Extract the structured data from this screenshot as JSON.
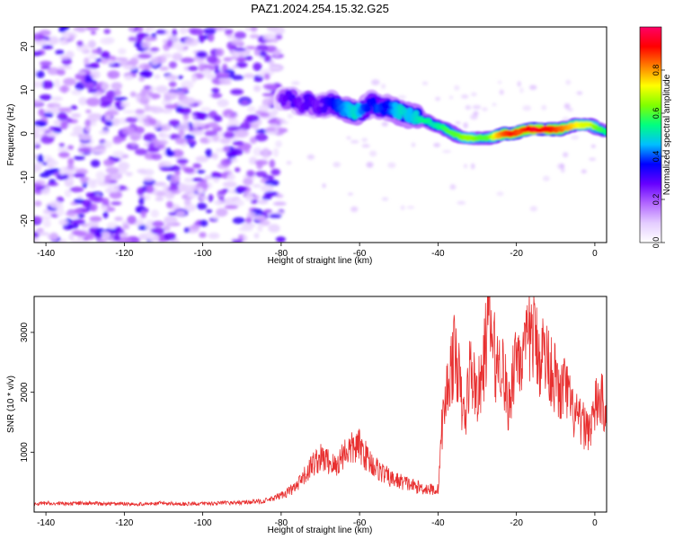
{
  "title": "PAZ1.2024.254.15.32.G25",
  "chart_data": [
    {
      "type": "heatmap",
      "xlabel": "Height of straight line (km)",
      "ylabel": "Frequency (Hz)",
      "xlim": [
        -143,
        3
      ],
      "ylim": [
        -25,
        24.5
      ],
      "xticks": [
        -140,
        -120,
        -100,
        -80,
        -60,
        -40,
        -20,
        0
      ],
      "yticks": [
        -20,
        -10,
        0,
        10,
        20
      ],
      "colorbar": {
        "label": "Normalized spectral amplitude",
        "range": [
          0,
          1
        ],
        "ticks": [
          0.0,
          0.2,
          0.4,
          0.6,
          0.8
        ],
        "colormap": [
          "#ffffff",
          "#e4ccff",
          "#b266ff",
          "#6600ff",
          "#0000ff",
          "#00bfff",
          "#00ff80",
          "#80ff00",
          "#ffff00",
          "#ff8000",
          "#ff0000",
          "#ff0066"
        ]
      },
      "ridge": {
        "x": [
          -80,
          -77,
          -75,
          -73,
          -71,
          -69,
          -67,
          -65,
          -63,
          -61,
          -59,
          -57,
          -55,
          -53,
          -51,
          -49,
          -47,
          -45,
          -43,
          -41,
          -39,
          -37,
          -35,
          -33,
          -31,
          -29,
          -27,
          -25,
          -23,
          -21,
          -19,
          -17,
          -15,
          -13,
          -11,
          -9,
          -7,
          -5,
          -3,
          -1,
          1,
          3
        ],
        "y": [
          8,
          8,
          6.5,
          7.5,
          6,
          6.5,
          7,
          6,
          5.5,
          5,
          5.5,
          7,
          6,
          6,
          5.5,
          4.5,
          4,
          3.5,
          3,
          2,
          1.5,
          0.5,
          -0.5,
          -1,
          -1,
          -1,
          -1,
          -0.5,
          0,
          0,
          0.5,
          1,
          1,
          1,
          1,
          1,
          1.5,
          2,
          2,
          2,
          1,
          0.5
        ],
        "amplitude": [
          0.25,
          0.3,
          0.25,
          0.3,
          0.25,
          0.3,
          0.35,
          0.4,
          0.45,
          0.5,
          0.4,
          0.35,
          0.4,
          0.35,
          0.45,
          0.5,
          0.45,
          0.5,
          0.55,
          0.5,
          0.55,
          0.6,
          0.6,
          0.65,
          0.65,
          0.6,
          0.6,
          0.75,
          0.85,
          0.9,
          0.85,
          0.9,
          0.95,
          0.9,
          0.9,
          0.85,
          0.8,
          0.75,
          0.7,
          0.7,
          0.6,
          0.55
        ]
      },
      "noise_region_x": [
        -143,
        -80
      ]
    },
    {
      "type": "line",
      "xlabel": "Height of straight line (km)",
      "ylabel": "SNR (10 * v/v)",
      "xlim": [
        -143,
        3
      ],
      "ylim": [
        0,
        3600
      ],
      "xticks": [
        -140,
        -120,
        -100,
        -80,
        -60,
        -40,
        -20,
        0
      ],
      "yticks": [
        1000,
        2000,
        3000
      ],
      "color": "#e83030",
      "x": [
        -143,
        -140,
        -135,
        -130,
        -125,
        -120,
        -115,
        -110,
        -105,
        -100,
        -95,
        -90,
        -85,
        -82,
        -80,
        -78,
        -76,
        -74,
        -72,
        -70,
        -68,
        -66,
        -64,
        -62,
        -60,
        -58,
        -56,
        -54,
        -52,
        -50,
        -48,
        -46,
        -44,
        -42,
        -40,
        -39,
        -38,
        -37,
        -36,
        -35,
        -34,
        -33,
        -32,
        -31,
        -30,
        -29,
        -28,
        -27,
        -26,
        -25,
        -24,
        -23,
        -22,
        -21,
        -20,
        -19,
        -18,
        -17,
        -16,
        -15,
        -14,
        -13,
        -12,
        -11,
        -10,
        -9,
        -8,
        -7,
        -6,
        -5,
        -4,
        -3,
        -2,
        -1,
        0,
        1,
        2,
        3
      ],
      "y": [
        130,
        150,
        140,
        150,
        135,
        140,
        130,
        150,
        135,
        140,
        150,
        160,
        180,
        220,
        280,
        350,
        420,
        600,
        800,
        900,
        850,
        750,
        1000,
        1050,
        1100,
        900,
        750,
        650,
        550,
        520,
        480,
        430,
        400,
        380,
        370,
        1400,
        1900,
        2300,
        2600,
        2500,
        1800,
        1500,
        2400,
        2200,
        2000,
        2100,
        2700,
        3300,
        2800,
        2400,
        2600,
        2200,
        1700,
        2300,
        2700,
        2650,
        2500,
        2900,
        3000,
        2800,
        2600,
        2700,
        2500,
        2400,
        2200,
        1900,
        2100,
        2000,
        1700,
        1600,
        1500,
        1450,
        1400,
        1450,
        1700,
        1900,
        1800,
        1750
      ]
    }
  ]
}
